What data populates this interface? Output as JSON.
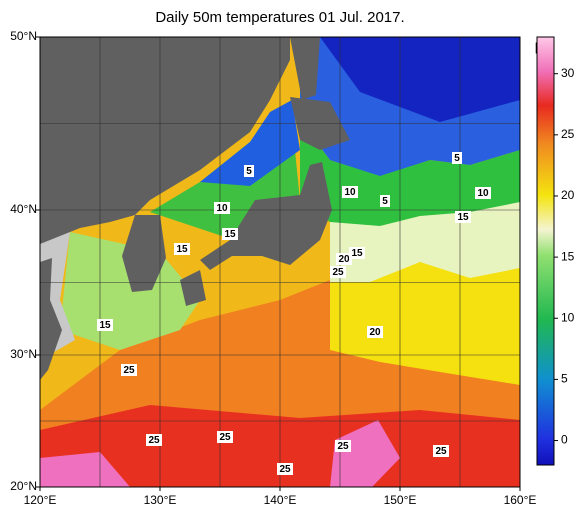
{
  "chart_data": {
    "type": "map",
    "title": "Daily 50m temperatures 01 Jul. 2017.",
    "xlim": [
      120,
      160
    ],
    "ylim": [
      20,
      50
    ],
    "xticks": [
      {
        "value": 120,
        "label": "120°E"
      },
      {
        "value": 130,
        "label": "130°E"
      },
      {
        "value": 140,
        "label": "140°E"
      },
      {
        "value": 150,
        "label": "150°E"
      },
      {
        "value": 160,
        "label": "160°E"
      }
    ],
    "yticks": [
      {
        "value": 20,
        "label": "20°N"
      },
      {
        "value": 30,
        "label": "30°N"
      },
      {
        "value": 40,
        "label": "40°N"
      },
      {
        "value": 50,
        "label": "50°N"
      }
    ],
    "grid_step": 5,
    "colorbar": {
      "unit": "[℃]",
      "lim": [
        -2,
        33
      ],
      "ticks": [
        0,
        5,
        10,
        15,
        20,
        25,
        30
      ]
    },
    "contour_labels": [
      5,
      10,
      15,
      15,
      15,
      5,
      10,
      5,
      10,
      15,
      20,
      15,
      25,
      25,
      20,
      25,
      25,
      25,
      25,
      25
    ]
  }
}
